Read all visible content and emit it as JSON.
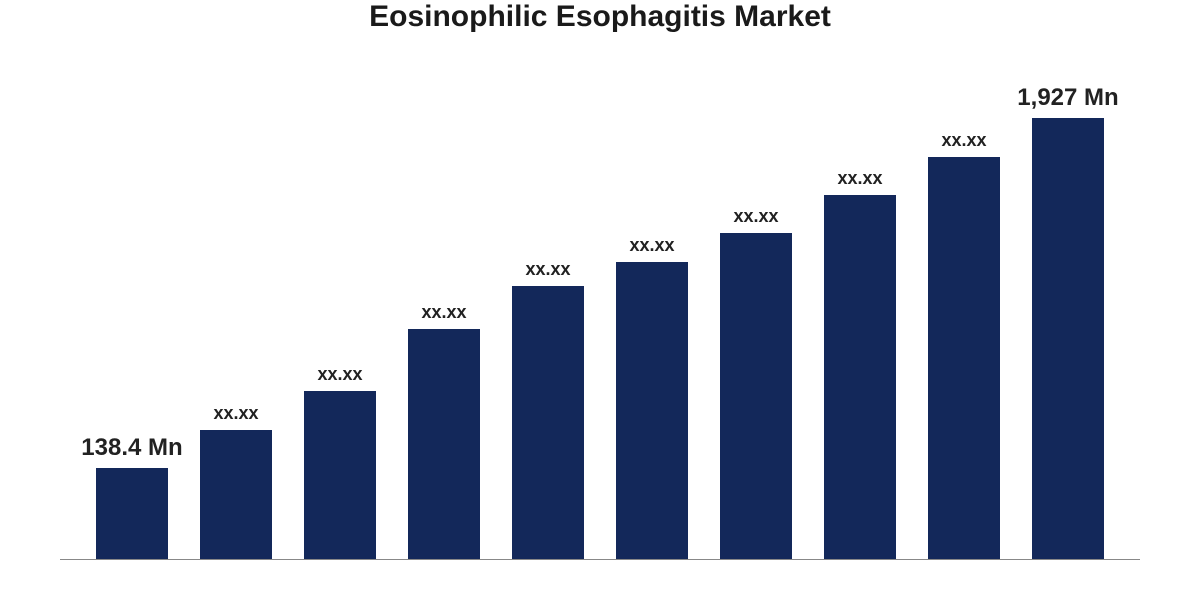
{
  "chart": {
    "type": "bar",
    "title": "Eosinophilic Esophagitis Market",
    "title_fontsize": 30,
    "title_color": "#1a1a1a",
    "background_color": "#ffffff",
    "axis_color": "#888888",
    "bars": [
      {
        "label": "138.4 Mn",
        "value_pct": 19,
        "color": "#13285a",
        "label_fontsize": 24
      },
      {
        "label": "xx.xx",
        "value_pct": 27,
        "color": "#13285a",
        "label_fontsize": 18
      },
      {
        "label": "xx.xx",
        "value_pct": 35,
        "color": "#13285a",
        "label_fontsize": 18
      },
      {
        "label": "xx.xx",
        "value_pct": 48,
        "color": "#13285a",
        "label_fontsize": 18
      },
      {
        "label": "xx.xx",
        "value_pct": 57,
        "color": "#13285a",
        "label_fontsize": 18
      },
      {
        "label": "xx.xx",
        "value_pct": 62,
        "color": "#13285a",
        "label_fontsize": 18
      },
      {
        "label": "xx.xx",
        "value_pct": 68,
        "color": "#13285a",
        "label_fontsize": 18
      },
      {
        "label": "xx.xx",
        "value_pct": 76,
        "color": "#13285a",
        "label_fontsize": 18
      },
      {
        "label": "xx.xx",
        "value_pct": 84,
        "color": "#13285a",
        "label_fontsize": 18
      },
      {
        "label": "1,927 Mn",
        "value_pct": 92,
        "color": "#13285a",
        "label_fontsize": 24
      }
    ],
    "bar_width_pct": 70,
    "label_color": "#222222"
  }
}
